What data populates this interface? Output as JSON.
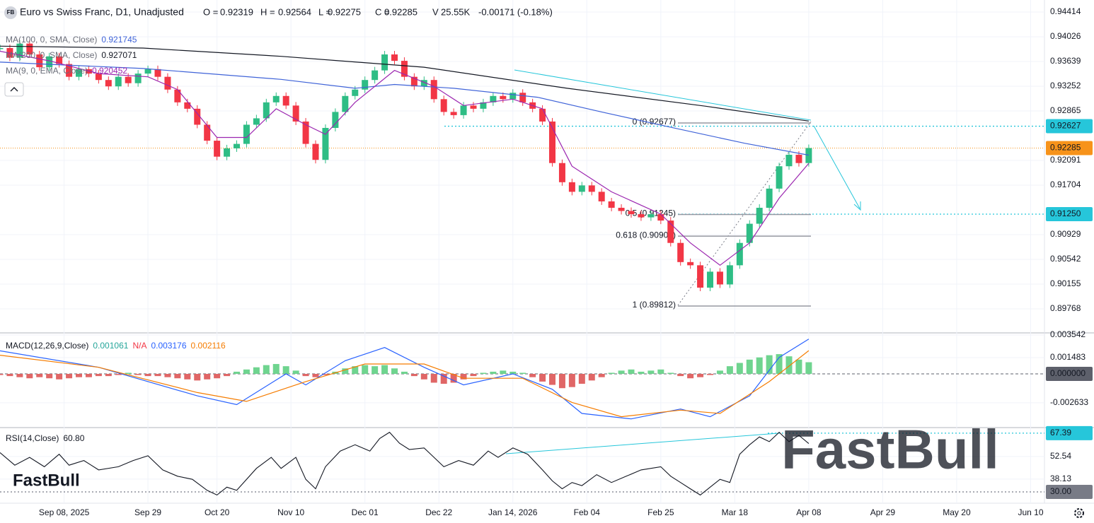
{
  "header": {
    "badge": "FB",
    "title": "Euro vs Swiss Franc, D1, Unadjusted",
    "fields": [
      {
        "key": "O =",
        "value": "0.92319"
      },
      {
        "key": "H =",
        "value": "0.92564"
      },
      {
        "key": "L =",
        "value": "0.92275"
      },
      {
        "key": "C =",
        "value": "0.92285"
      },
      {
        "key": "V",
        "value": "25.55K"
      }
    ],
    "change": "-0.00171 (-0.18%)"
  },
  "logo": "FastBull",
  "watermark": "FastBull",
  "chart_data": [
    {
      "type": "candlestick",
      "up_color": "#2ebd85",
      "down_color": "#f23645",
      "grid": true,
      "xlim": [
        0,
        211.8
      ],
      "xticks": [
        {
          "value": 13,
          "label": "Sep 08, 2025"
        },
        {
          "value": 30,
          "label": "Sep 29"
        },
        {
          "value": 44,
          "label": "Oct 20"
        },
        {
          "value": 59,
          "label": "Nov 10"
        },
        {
          "value": 74,
          "label": "Dec 01"
        },
        {
          "value": 89,
          "label": "Dec 22"
        },
        {
          "value": 104,
          "label": "Jan 14, 2026"
        },
        {
          "value": 119,
          "label": "Feb 04"
        },
        {
          "value": 134,
          "label": "Feb 25"
        },
        {
          "value": 149,
          "label": "Mar 18"
        },
        {
          "value": 164,
          "label": "Apr 08"
        },
        {
          "value": 179,
          "label": "Apr 29"
        },
        {
          "value": 194,
          "label": "May 20"
        },
        {
          "value": 209,
          "label": "Jun 10"
        }
      ],
      "ylim": [
        0.89403,
        0.94602
      ],
      "yticks": [
        0.94414,
        0.94026,
        0.93639,
        0.93252,
        0.92865,
        0.92091,
        0.91704,
        0.90929,
        0.90542,
        0.90155,
        0.89768
      ],
      "x": [
        0,
        2,
        4,
        6,
        8,
        10,
        12,
        14,
        16,
        18,
        20,
        22,
        24,
        26,
        28,
        30,
        32,
        34,
        36,
        38,
        40,
        42,
        44,
        46,
        48,
        50,
        52,
        54,
        56,
        58,
        60,
        62,
        64,
        66,
        68,
        70,
        72,
        74,
        76,
        78,
        80,
        82,
        84,
        86,
        88,
        90,
        92,
        94,
        96,
        98,
        100,
        102,
        104,
        106,
        108,
        110,
        112,
        114,
        116,
        118,
        120,
        122,
        124,
        126,
        128,
        130,
        132,
        134,
        136,
        138,
        140,
        142,
        144,
        146,
        148,
        150,
        152,
        154,
        156,
        158,
        160,
        162,
        164
      ],
      "close": [
        0.9385,
        0.937,
        0.9392,
        0.9375,
        0.9355,
        0.9372,
        0.936,
        0.934,
        0.9352,
        0.9345,
        0.9335,
        0.9325,
        0.934,
        0.933,
        0.9345,
        0.9352,
        0.934,
        0.932,
        0.93,
        0.929,
        0.9265,
        0.924,
        0.9215,
        0.9228,
        0.9235,
        0.9265,
        0.9275,
        0.93,
        0.931,
        0.9295,
        0.927,
        0.9235,
        0.921,
        0.926,
        0.9285,
        0.931,
        0.932,
        0.9335,
        0.935,
        0.9375,
        0.9365,
        0.934,
        0.9325,
        0.9335,
        0.9305,
        0.9285,
        0.928,
        0.9295,
        0.929,
        0.93,
        0.931,
        0.9305,
        0.9315,
        0.93,
        0.929,
        0.927,
        0.9205,
        0.9175,
        0.916,
        0.917,
        0.916,
        0.9145,
        0.9135,
        0.913,
        0.9125,
        0.912,
        0.9125,
        0.9115,
        0.908,
        0.905,
        0.9045,
        0.901,
        0.9035,
        0.9015,
        0.9045,
        0.908,
        0.911,
        0.9135,
        0.9165,
        0.92,
        0.9218,
        0.9205,
        0.92285
      ],
      "series": [
        {
          "name": "MA(100, 0, SMA, Close)",
          "last": 0.921745,
          "color": "#3f63d8",
          "x": [
            0,
            29,
            57,
            72,
            80,
            92,
            109,
            122,
            136,
            151,
            164
          ],
          "values": [
            0.9363,
            0.9353,
            0.9336,
            0.9322,
            0.9328,
            0.9322,
            0.9308,
            0.9285,
            0.9261,
            0.9236,
            0.921745
          ]
        },
        {
          "name": "MA(200, 0, SMA, Close)",
          "last": 0.927071,
          "color": "#131722",
          "x": [
            0,
            29,
            57,
            86,
            115,
            143,
            164
          ],
          "values": [
            0.9388,
            0.9385,
            0.9372,
            0.9355,
            0.9322,
            0.9294,
            0.927071
          ]
        },
        {
          "name": "MA(9, 0, EMA, Close)",
          "last": 0.920452,
          "color": "#9c27b0",
          "x": [
            0,
            10,
            20,
            30,
            36,
            44,
            50,
            56,
            62,
            66,
            72,
            80,
            88,
            94,
            104,
            110,
            116,
            124,
            134,
            140,
            146,
            152,
            158,
            164
          ],
          "values": [
            0.938,
            0.9365,
            0.9345,
            0.934,
            0.932,
            0.9245,
            0.9245,
            0.929,
            0.9265,
            0.925,
            0.93,
            0.935,
            0.9325,
            0.9295,
            0.9305,
            0.929,
            0.92,
            0.916,
            0.9125,
            0.908,
            0.9045,
            0.908,
            0.915,
            0.920452
          ]
        }
      ],
      "last_price": {
        "value": 0.92285,
        "color": "#f7931a"
      },
      "levels": [
        {
          "value": 0.92627,
          "color": "#26c6da"
        },
        {
          "value": 0.9125,
          "label": "0.91250",
          "color": "#26c6da"
        }
      ],
      "fib": [
        {
          "label": "0 (0.92677)",
          "value": 0.92677
        },
        {
          "label": "0.5 (0.91245)",
          "value": 0.91245
        },
        {
          "label": "0.618 (0.90906)",
          "value": 0.90906
        },
        {
          "label": "1 (0.89812)",
          "value": 0.89812
        }
      ]
    },
    {
      "type": "macd",
      "title": "MACD(12,26,9,Close)",
      "na_label": "N/A",
      "ylim": [
        -0.00489,
        0.00367
      ],
      "yticks": [
        0.003542,
        0.001483,
        -0.002633
      ],
      "zero": {
        "value": 0,
        "label": "0.000000",
        "color": "#5d606b"
      },
      "histogram": {
        "last": 0.001061,
        "pos_color": "#6fd48f",
        "neg_color": "#e06666",
        "values": [
          -0.0001,
          -0.0002,
          -0.0003,
          -0.0004,
          -0.0003,
          -0.0004,
          -0.0005,
          -0.0004,
          -0.0003,
          -0.0003,
          -0.0002,
          -0.0002,
          -0.0001,
          0.0001,
          -0.0001,
          -0.0002,
          -0.0002,
          -0.0003,
          -0.0004,
          -0.0005,
          -0.0006,
          -0.0005,
          -0.0004,
          -0.0002,
          0.0002,
          0.0004,
          0.0006,
          0.0008,
          0.0009,
          0.0007,
          0.0003,
          -0.0002,
          -0.0003,
          -0.0001,
          0.0002,
          0.0005,
          0.0007,
          0.0008,
          0.0007,
          0.0008,
          0.0005,
          0.0002,
          -0.0002,
          -0.0005,
          -0.0008,
          -0.0009,
          -0.0008,
          -0.0005,
          -0.0002,
          0.0001,
          0.0002,
          0.0003,
          0.0002,
          0.0001,
          -0.0003,
          -0.0007,
          -0.001,
          -0.0013,
          -0.0012,
          -0.0009,
          -0.0006,
          -0.0003,
          0.0001,
          0.0003,
          0.0004,
          0.0002,
          0.0003,
          0.0004,
          0.0001,
          -0.0002,
          -0.0004,
          -0.0003,
          -0.0001,
          0.0003,
          0.0007,
          0.001,
          0.0013,
          0.0015,
          0.0017,
          0.0018,
          0.0016,
          0.0013,
          0.001061
        ]
      },
      "series": [
        {
          "last": 0.003176,
          "color": "#2962ff",
          "x": [
            0,
            20,
            40,
            48,
            58,
            62,
            70,
            78,
            86,
            94,
            104,
            112,
            118,
            128,
            138,
            144,
            152,
            158,
            164
          ],
          "values": [
            0.0021,
            0.0006,
            -0.002,
            -0.0028,
            0,
            -0.001,
            0.0012,
            0.0024,
            0.0006,
            -0.001,
            0,
            -0.0014,
            -0.0036,
            -0.0041,
            -0.0032,
            -0.0039,
            -0.002,
            0.0015,
            0.003176
          ]
        },
        {
          "last": 0.002116,
          "color": "#f57c00",
          "x": [
            0,
            20,
            40,
            50,
            62,
            74,
            86,
            94,
            106,
            116,
            126,
            138,
            146,
            156,
            164
          ],
          "values": [
            0.0017,
            0.0006,
            -0.0017,
            -0.0025,
            -0.0007,
            0.0009,
            0.0009,
            -0.0004,
            -0.0004,
            -0.0026,
            -0.0039,
            -0.0033,
            -0.0036,
            -0.0007,
            0.002116
          ]
        }
      ]
    },
    {
      "type": "line",
      "ylim": [
        22.8,
        70.5
      ],
      "yticks": [
        52.54,
        38.13
      ],
      "levels": [
        {
          "value": 67.39,
          "color": "#26c6da"
        },
        {
          "value": 30,
          "label": "30.00",
          "color": "#787b86"
        }
      ],
      "series": [
        {
          "name": "RSI(14,Close)",
          "last": {
            "value": 60.8,
            "label": "60.80"
          },
          "color": "#131722",
          "x": [
            0,
            3,
            6,
            9,
            12,
            14,
            17,
            20,
            24,
            27,
            30,
            33,
            36,
            39,
            42,
            44,
            46,
            48,
            52,
            55,
            57,
            60,
            62,
            64,
            66,
            69,
            72,
            75,
            77,
            79,
            81,
            83,
            86,
            88,
            90,
            93,
            96,
            99,
            101,
            104,
            107,
            110,
            112,
            114,
            116,
            118,
            121,
            124,
            127,
            130,
            134,
            136,
            138,
            140,
            142,
            144,
            146,
            148,
            150,
            152,
            154,
            156,
            158,
            160,
            162,
            164
          ],
          "values": [
            55,
            47,
            52,
            46,
            54,
            47,
            50,
            44,
            46,
            50,
            53,
            44,
            40,
            38,
            31,
            28,
            33,
            31,
            45,
            52,
            45,
            52,
            38,
            32,
            46,
            56,
            60,
            56,
            64,
            68,
            61,
            57,
            58,
            52,
            46,
            50,
            47,
            56,
            52,
            58,
            54,
            44,
            37,
            32,
            36,
            34,
            41,
            36,
            40,
            44,
            46,
            40,
            36,
            32,
            28,
            33,
            38,
            36,
            54,
            60,
            65,
            62,
            68,
            62,
            66,
            60.8
          ]
        }
      ]
    }
  ]
}
